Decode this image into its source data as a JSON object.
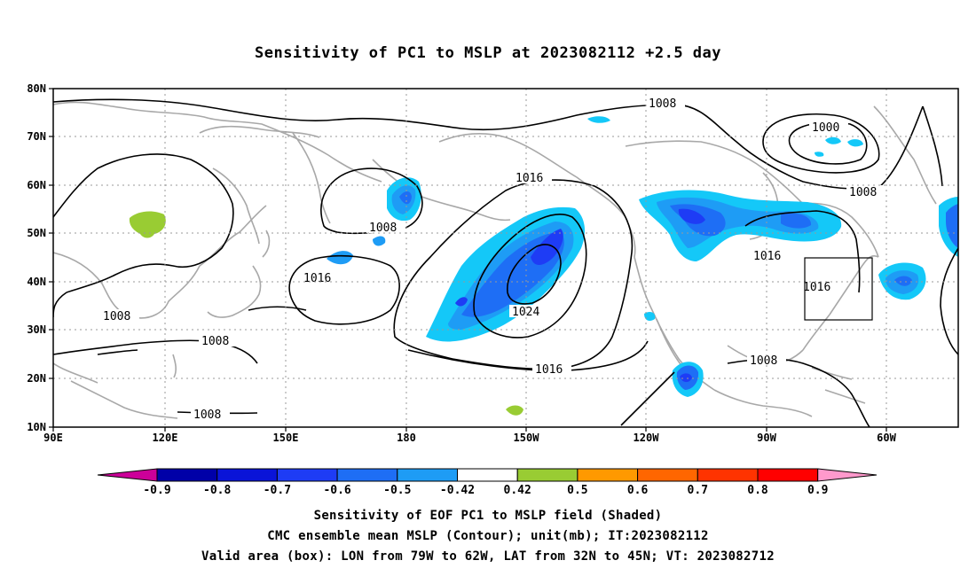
{
  "title": "Sensitivity of PC1 to MSLP at 2023082112 +2.5 day",
  "lat_labels": [
    "80N",
    "70N",
    "60N",
    "50N",
    "40N",
    "30N",
    "20N",
    "10N"
  ],
  "lon_labels": [
    "90E",
    "120E",
    "150E",
    "180",
    "150W",
    "120W",
    "90W",
    "60W"
  ],
  "contour_labels": [
    "1008",
    "1000",
    "1008",
    "1016",
    "1008",
    "1016",
    "1024",
    "1016",
    "1016",
    "1016",
    "1008",
    "1008",
    "1008",
    "1008"
  ],
  "colorbar": {
    "labels": [
      "-0.9",
      "-0.8",
      "-0.7",
      "-0.6",
      "-0.5",
      "-0.42",
      "0.42",
      "0.5",
      "0.6",
      "0.7",
      "0.8",
      "0.9"
    ],
    "colors": [
      "#cc0099",
      "#0000a8",
      "#0a14d8",
      "#1e3cf5",
      "#1e6ef5",
      "#1e9cf5",
      "#14c8f8",
      "#ffffff",
      "#99cc33",
      "#ff9900",
      "#ff6600",
      "#ff3300",
      "#ff0000",
      "#ff99cc"
    ]
  },
  "captions": [
    "Sensitivity of EOF PC1 to MSLP field (Shaded)",
    "CMC ensemble mean MSLP (Contour); unit(mb); IT:2023082112",
    "Valid area (box): LON from 79W to 62W, LAT from 32N to 45N; VT: 2023082712"
  ]
}
